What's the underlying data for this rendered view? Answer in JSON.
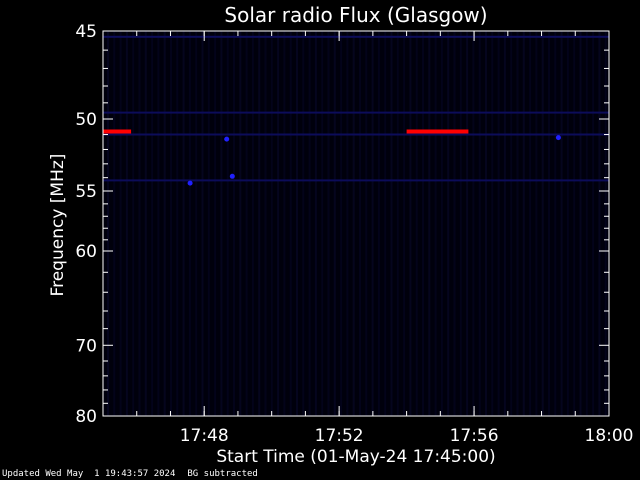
{
  "chart_data": {
    "type": "heatmap",
    "title": "Solar radio Flux (Glasgow)",
    "xlabel": "Start Time (01-May-24 17:45:00)",
    "ylabel": "Frequency [MHz]",
    "x_unit": "minutes",
    "xlim": [
      "17:45:00",
      "18:00:00"
    ],
    "ylim": [
      45,
      80
    ],
    "x_ticks": [
      "17:48",
      "17:52",
      "17:56",
      "18:00"
    ],
    "y_ticks": [
      45,
      50,
      55,
      60,
      70,
      80
    ],
    "background_color": "#00000c",
    "intense_features": [
      {
        "time_start": "17:45:00",
        "time_end": "17:45:50",
        "frequency_mhz": 50.8,
        "color": "#ff0000"
      },
      {
        "time_start": "17:54:00",
        "time_end": "17:55:50",
        "frequency_mhz": 50.8,
        "color": "#ff0000"
      }
    ],
    "weak_features": [
      {
        "time": "17:47:35",
        "frequency_mhz": 54.4,
        "color": "#2020ff"
      },
      {
        "time": "17:48:50",
        "frequency_mhz": 53.9,
        "color": "#2020ff"
      },
      {
        "time": "17:48:40",
        "frequency_mhz": 51.3,
        "color": "#2020ff"
      },
      {
        "time": "17:58:30",
        "frequency_mhz": 51.2,
        "color": "#2020ff"
      }
    ],
    "faint_band_frequencies_mhz": [
      45.3,
      49.6,
      51.0,
      54.2
    ]
  },
  "footer": {
    "updated": "Updated Wed May  1 19:43:57 2024",
    "bg_note": "BG subtracted"
  }
}
